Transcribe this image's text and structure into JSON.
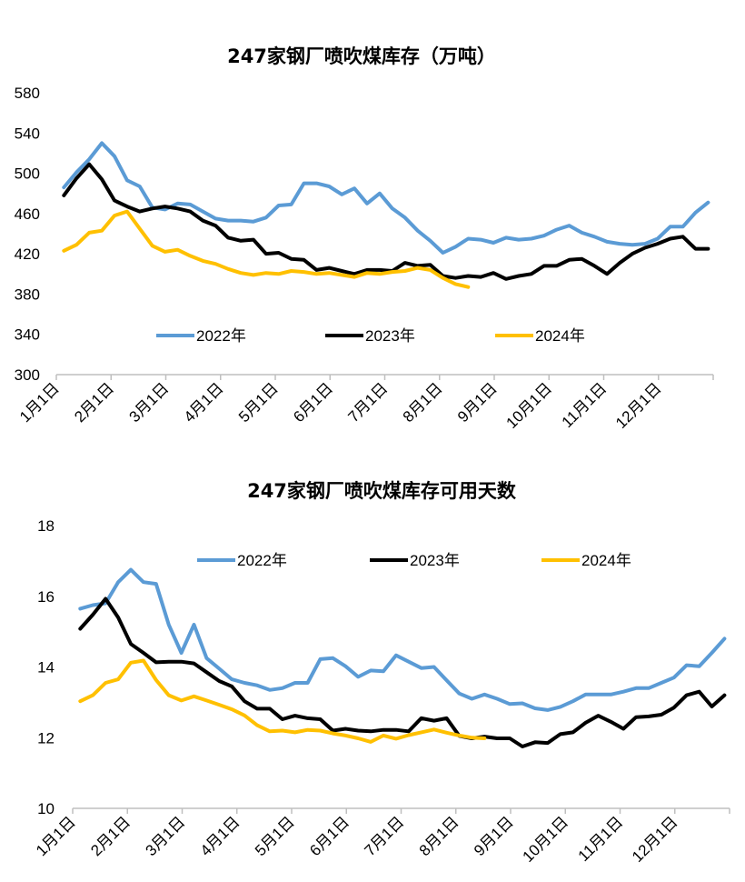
{
  "chart_data": [
    {
      "type": "line",
      "title": "247家钢厂喷吹煤库存（万吨）",
      "ylim": [
        300,
        580
      ],
      "yticks": [
        300,
        340,
        380,
        420,
        460,
        500,
        540,
        580
      ],
      "xticks": [
        "1月1日",
        "2月1日",
        "3月1日",
        "4月1日",
        "5月1日",
        "6月1日",
        "7月1日",
        "8月1日",
        "9月1日",
        "10月1日",
        "11月1日",
        "12月1日"
      ],
      "grid": false,
      "legend": "inside-center",
      "series": [
        {
          "name": "2022年",
          "color": "#5b9bd5",
          "values": [
            486,
            501,
            514,
            530,
            517,
            493,
            487,
            466,
            464,
            470,
            469,
            462,
            455,
            453,
            453,
            452,
            456,
            468,
            469,
            490,
            490,
            487,
            479,
            485,
            470,
            480,
            465,
            456,
            443,
            433,
            421,
            427,
            435,
            434,
            431,
            436,
            434,
            435,
            438,
            444,
            448,
            441,
            437,
            432,
            430,
            429,
            430,
            435,
            447,
            447,
            461,
            471
          ]
        },
        {
          "name": "2023年",
          "color": "#000000",
          "values": [
            478,
            495,
            509,
            494,
            473,
            467,
            462,
            465,
            467,
            465,
            462,
            453,
            448,
            436,
            433,
            434,
            420,
            421,
            415,
            414,
            404,
            406,
            403,
            400,
            404,
            404,
            403,
            411,
            408,
            409,
            398,
            396,
            398,
            397,
            401,
            395,
            398,
            400,
            408,
            408,
            414,
            415,
            408,
            400,
            411,
            420,
            426,
            430,
            435,
            437,
            425,
            425
          ]
        },
        {
          "name": "2024年",
          "color": "#ffc000",
          "values": [
            423,
            429,
            441,
            443,
            458,
            462,
            445,
            428,
            422,
            424,
            418,
            413,
            410,
            405,
            401,
            399,
            401,
            400,
            403,
            402,
            400,
            401,
            399,
            397,
            401,
            400,
            402,
            403,
            406,
            404,
            396,
            390,
            387
          ]
        }
      ]
    },
    {
      "type": "line",
      "title": "247家钢厂喷吹煤库存可用天数",
      "ylim": [
        10,
        18
      ],
      "yticks": [
        10,
        12,
        14,
        16,
        18
      ],
      "xticks": [
        "1月1日",
        "2月1日",
        "3月1日",
        "4月1日",
        "5月1日",
        "6月1日",
        "7月1日",
        "8月1日",
        "9月1日",
        "10月1日",
        "11月1日",
        "12月1日"
      ],
      "grid": false,
      "legend": "top",
      "series": [
        {
          "name": "2022年",
          "color": "#5b9bd5",
          "values": [
            15.65,
            15.75,
            15.8,
            16.4,
            16.75,
            16.4,
            16.35,
            15.2,
            14.4,
            15.2,
            14.25,
            13.95,
            13.65,
            13.55,
            13.48,
            13.35,
            13.4,
            13.55,
            13.55,
            14.22,
            14.25,
            14.02,
            13.72,
            13.9,
            13.88,
            14.33,
            14.15,
            13.97,
            14,
            13.62,
            13.25,
            13.1,
            13.22,
            13.1,
            12.95,
            12.97,
            12.83,
            12.78,
            12.87,
            13.03,
            13.22,
            13.22,
            13.22,
            13.3,
            13.4,
            13.4,
            13.55,
            13.7,
            14.05,
            14.02,
            14.4,
            14.8
          ]
        },
        {
          "name": "2023年",
          "color": "#000000",
          "values": [
            15.08,
            15.48,
            15.93,
            15.4,
            14.65,
            14.4,
            14.13,
            14.15,
            14.15,
            14.1,
            13.85,
            13.6,
            13.45,
            13.03,
            12.82,
            12.82,
            12.52,
            12.62,
            12.55,
            12.52,
            12.2,
            12.25,
            12.2,
            12.18,
            12.22,
            12.22,
            12.18,
            12.55,
            12.48,
            12.55,
            12.05,
            11.98,
            12.03,
            11.98,
            11.98,
            11.75,
            11.87,
            11.85,
            12.1,
            12.15,
            12.42,
            12.62,
            12.45,
            12.25,
            12.58,
            12.6,
            12.65,
            12.85,
            13.2,
            13.3,
            12.88,
            13.2
          ]
        },
        {
          "name": "2024年",
          "color": "#ffc000",
          "values": [
            13.03,
            13.2,
            13.55,
            13.65,
            14.12,
            14.18,
            13.63,
            13.2,
            13.05,
            13.17,
            13.05,
            12.93,
            12.8,
            12.63,
            12.35,
            12.18,
            12.2,
            12.15,
            12.22,
            12.2,
            12.12,
            12.06,
            11.98,
            11.88,
            12.06,
            11.97,
            12.07,
            12.15,
            12.23,
            12.14,
            12.06,
            12,
            11.98
          ]
        }
      ]
    }
  ]
}
